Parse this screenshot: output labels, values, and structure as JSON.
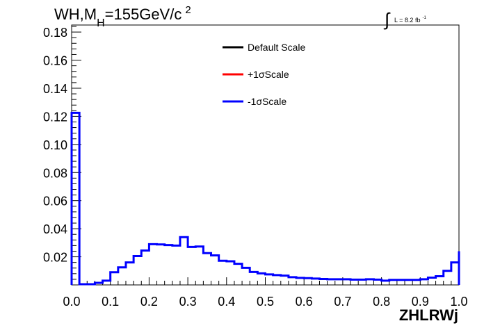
{
  "chart_data": {
    "type": "histogram-step",
    "title_main": "WH,M",
    "title_sub": "H",
    "title_rest": "=155GeV/c",
    "title_sup": "2",
    "lumi_prefix": "L = 8.2 fb",
    "lumi_sup": "-1",
    "xlabel": "ZHLRWj",
    "ylabel": "",
    "xlim": [
      0.0,
      1.0
    ],
    "ylim": [
      0.0,
      0.185
    ],
    "x_ticks": [
      "0.0",
      "0.1",
      "0.2",
      "0.3",
      "0.4",
      "0.5",
      "0.6",
      "0.7",
      "0.8",
      "0.9",
      "1.0"
    ],
    "y_ticks": [
      "0.02",
      "0.04",
      "0.06",
      "0.08",
      "0.10",
      "0.12",
      "0.14",
      "0.16",
      "0.18"
    ],
    "legend": [
      {
        "label": "Default Scale",
        "color": "#000000"
      },
      {
        "label": "+1σScale",
        "color": "#ff0000"
      },
      {
        "label": "-1σScale",
        "color": "#0000ff"
      }
    ],
    "bin_width": 0.02,
    "bin_edges_start": 0.0,
    "series": [
      {
        "name": "-1σScale",
        "color": "#0000ff",
        "values": [
          0.1225,
          0.0005,
          0.0005,
          0.0015,
          0.003,
          0.009,
          0.0125,
          0.016,
          0.0205,
          0.0245,
          0.029,
          0.0288,
          0.0284,
          0.028,
          0.034,
          0.027,
          0.0273,
          0.0226,
          0.021,
          0.0172,
          0.0168,
          0.015,
          0.0122,
          0.0092,
          0.0082,
          0.0075,
          0.007,
          0.0066,
          0.0055,
          0.005,
          0.0048,
          0.0045,
          0.0042,
          0.004,
          0.004,
          0.004,
          0.0038,
          0.0038,
          0.004,
          0.0038,
          0.003,
          0.0036,
          0.0036,
          0.0036,
          0.0036,
          0.004,
          0.0052,
          0.0062,
          0.01,
          0.016,
          0.024
        ]
      }
    ]
  }
}
